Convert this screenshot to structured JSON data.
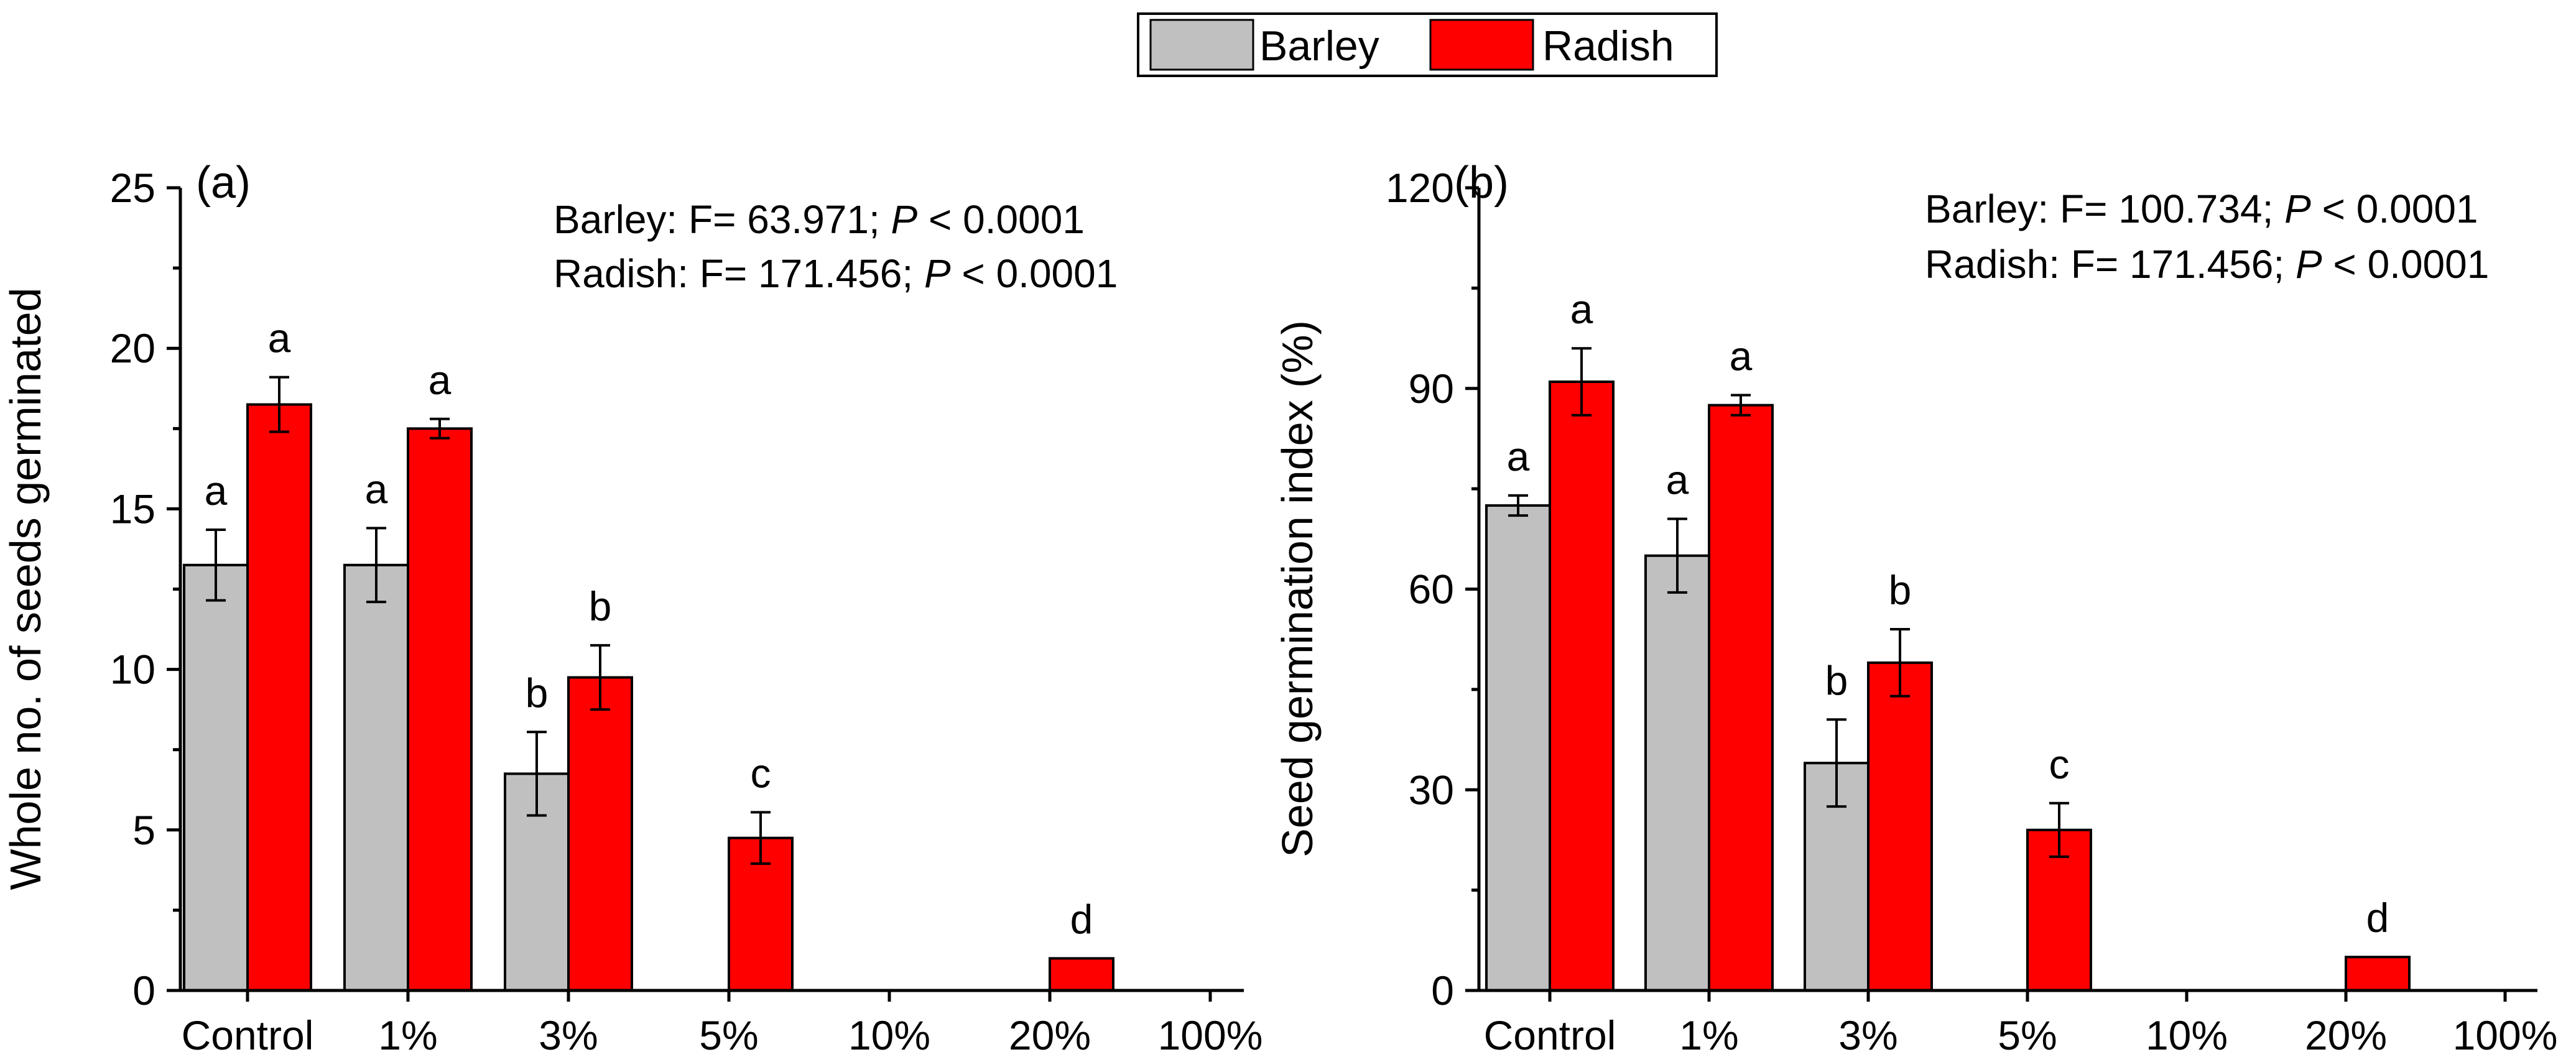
{
  "legend": {
    "position": "top-center",
    "items": [
      {
        "label": "Barley",
        "color": "#c0c0c0"
      },
      {
        "label": "Radish",
        "color": "#ff0000"
      }
    ]
  },
  "chart_data": [
    {
      "type": "bar",
      "panel_label": "(a)",
      "ylabel": "Whole no. of seeds germinated",
      "xlabel": "",
      "categories": [
        "Control",
        "1%",
        "3%",
        "5%",
        "10%",
        "20%",
        "100%"
      ],
      "ylim": [
        0,
        25
      ],
      "yticks": [
        0,
        5,
        10,
        15,
        20,
        25
      ],
      "series": [
        {
          "name": "Barley",
          "color": "#c0c0c0",
          "values": [
            13.25,
            13.25,
            6.75,
            0,
            0,
            0,
            0
          ],
          "errors": [
            1.1,
            1.15,
            1.3,
            0,
            0,
            0,
            0
          ],
          "letters": [
            "a",
            "a",
            "b",
            "",
            "",
            "",
            ""
          ]
        },
        {
          "name": "Radish",
          "color": "#ff0000",
          "values": [
            18.25,
            17.5,
            9.75,
            4.75,
            0,
            1,
            0
          ],
          "errors": [
            0.85,
            0.3,
            1.0,
            0.8,
            0,
            0,
            0
          ],
          "letters": [
            "a",
            "a",
            "b",
            "c",
            "",
            "d",
            ""
          ]
        }
      ],
      "stats": [
        {
          "species": "Barley",
          "pre": ": F= 63.971; ",
          "p": "P",
          "post": " < 0.0001"
        },
        {
          "species": "Radish",
          "pre": ": F= 171.456; ",
          "p": "P",
          "post": " < 0.0001"
        }
      ],
      "grid": false
    },
    {
      "type": "bar",
      "panel_label": "(b)",
      "ylabel": "Seed germination index (%)",
      "xlabel": "",
      "categories": [
        "Control",
        "1%",
        "3%",
        "5%",
        "10%",
        "20%",
        "100%"
      ],
      "ylim": [
        0,
        120
      ],
      "yticks": [
        0,
        30,
        60,
        90,
        120
      ],
      "series": [
        {
          "name": "Barley",
          "color": "#c0c0c0",
          "values": [
            72.5,
            65,
            34,
            0,
            0,
            0,
            0
          ],
          "errors": [
            1.5,
            5.5,
            6.5,
            0,
            0,
            0,
            0
          ],
          "letters": [
            "a",
            "a",
            "b",
            "",
            "",
            "",
            ""
          ]
        },
        {
          "name": "Radish",
          "color": "#ff0000",
          "values": [
            91,
            87.5,
            49,
            24,
            0,
            5,
            0
          ],
          "errors": [
            5,
            1.5,
            5,
            4,
            0,
            0,
            0
          ],
          "letters": [
            "a",
            "a",
            "b",
            "c",
            "",
            "d",
            ""
          ]
        }
      ],
      "stats": [
        {
          "species": "Barley",
          "pre": ": F= 100.734; ",
          "p": "P",
          "post": " < 0.0001"
        },
        {
          "species": "Radish",
          "pre": ": F= 171.456; ",
          "p": "P",
          "post": " < 0.0001"
        }
      ],
      "grid": false
    }
  ]
}
